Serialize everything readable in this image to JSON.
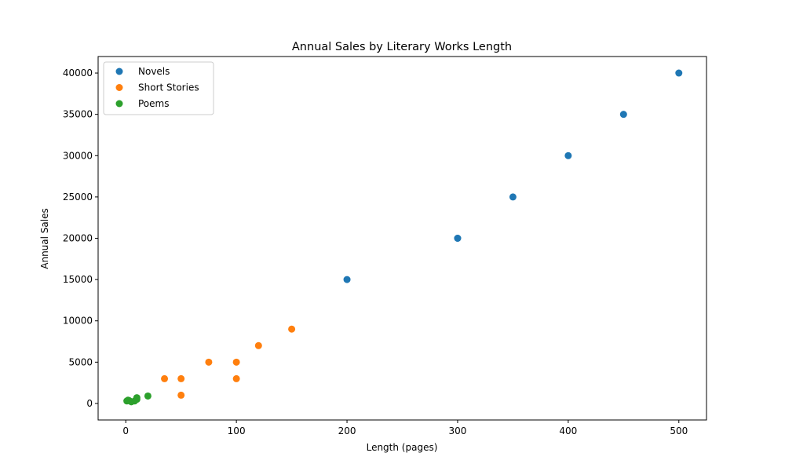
{
  "chart_data": {
    "type": "scatter",
    "title": "Annual Sales by Literary Works Length",
    "xlabel": "Length (pages)",
    "ylabel": "Annual Sales",
    "xlim": [
      -25,
      525
    ],
    "ylim": [
      -2000,
      42000
    ],
    "xticks": [
      0,
      100,
      200,
      300,
      400,
      500
    ],
    "yticks": [
      0,
      5000,
      10000,
      15000,
      20000,
      25000,
      30000,
      35000,
      40000
    ],
    "grid": false,
    "legend_position": "top-left",
    "series": [
      {
        "name": "Novels",
        "color": "#1f77b4",
        "points": [
          [
            200,
            15000
          ],
          [
            300,
            20000
          ],
          [
            300,
            20000
          ],
          [
            350,
            25000
          ],
          [
            400,
            30000
          ],
          [
            450,
            35000
          ],
          [
            500,
            40000
          ]
        ]
      },
      {
        "name": "Short Stories",
        "color": "#ff7f0e",
        "points": [
          [
            35,
            3000
          ],
          [
            50,
            1000
          ],
          [
            50,
            3000
          ],
          [
            75,
            5000
          ],
          [
            100,
            3000
          ],
          [
            100,
            5000
          ],
          [
            120,
            7000
          ],
          [
            150,
            9000
          ]
        ]
      },
      {
        "name": "Poems",
        "color": "#2ca02c",
        "points": [
          [
            1,
            300
          ],
          [
            2,
            400
          ],
          [
            3,
            350
          ],
          [
            5,
            200
          ],
          [
            8,
            300
          ],
          [
            10,
            500
          ],
          [
            10,
            700
          ],
          [
            20,
            900
          ]
        ]
      }
    ]
  }
}
